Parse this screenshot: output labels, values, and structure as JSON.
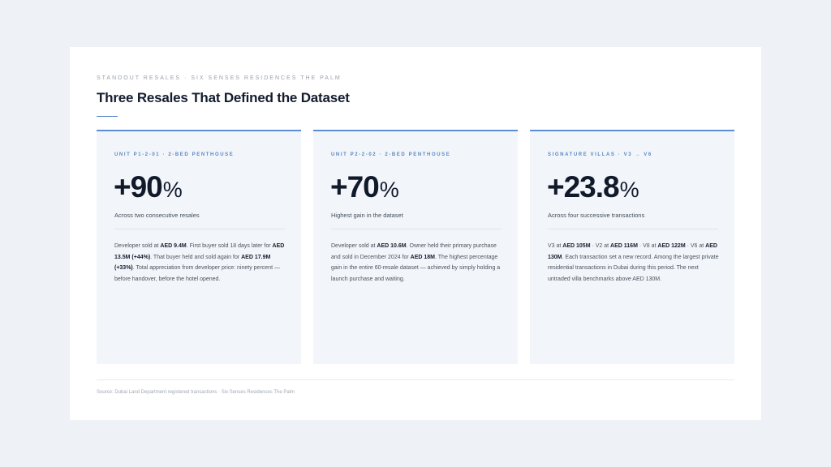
{
  "eyebrow": "STANDOUT RESALES · SIX SENSES RESIDENCES THE PALM",
  "title": "Three Resales That Defined the Dataset",
  "colors": {
    "accent": "#5b8ed4",
    "card_bg": "#f2f6fa",
    "page_bg": "#eef1f5",
    "heading": "#141d2e"
  },
  "cards": [
    {
      "label": "UNIT P1-2-01 · 2-BED PENTHOUSE",
      "stat_value": "+90",
      "stat_unit": "%",
      "caption": "Across two consecutive resales",
      "body": [
        {
          "t": "Developer sold at "
        },
        {
          "t": "AED 9.4M",
          "b": true
        },
        {
          "t": ". First buyer sold 18 days later for "
        },
        {
          "t": "AED 13.5M (+44%)",
          "b": true
        },
        {
          "t": ". That buyer held and sold again for "
        },
        {
          "t": "AED 17.9M (+33%)",
          "b": true
        },
        {
          "t": ". Total appreciation from developer price: ninety percent — before handover, before the hotel opened."
        }
      ]
    },
    {
      "label": "UNIT P2-2-02 · 2-BED PENTHOUSE",
      "stat_value": "+70",
      "stat_unit": "%",
      "caption": "Highest gain in the dataset",
      "body": [
        {
          "t": "Developer sold at "
        },
        {
          "t": "AED 10.6M",
          "b": true
        },
        {
          "t": ". Owner held their primary purchase and sold in December 2024 for "
        },
        {
          "t": "AED 18M",
          "b": true
        },
        {
          "t": ". The highest percentage gain in the entire 60-resale dataset — achieved by simply holding a launch purchase and waiting."
        }
      ]
    },
    {
      "label": "SIGNATURE VILLAS · V3 → V6",
      "stat_value": "+23.8",
      "stat_unit": "%",
      "caption": "Across four successive transactions",
      "body": [
        {
          "t": "V3 at "
        },
        {
          "t": "AED 105M",
          "b": true
        },
        {
          "t": " · V2 at "
        },
        {
          "t": "AED 116M",
          "b": true
        },
        {
          "t": " · V8 at "
        },
        {
          "t": "AED 122M",
          "b": true
        },
        {
          "t": " · V6 at "
        },
        {
          "t": "AED 130M",
          "b": true
        },
        {
          "t": ". Each transaction set a new record. Among the largest private residential transactions in Dubai during this period. The next untraded villa benchmarks above AED 130M."
        }
      ]
    }
  ],
  "source": "Source: Dubai Land Department registered transactions · Six Senses Residences The Palm"
}
